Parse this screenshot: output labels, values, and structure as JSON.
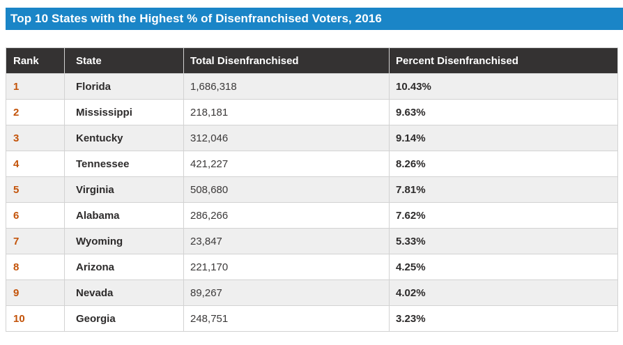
{
  "title": "Top 10 States with the Highest % of Disenfranchised Voters, 2016",
  "colors": {
    "title_bar_bg": "#1a85c7",
    "title_text": "#ffffff",
    "header_bg": "#343232",
    "header_text": "#ffffff",
    "row_alt_bg": "#efefef",
    "rank_text": "#c35309"
  },
  "chart_data": {
    "type": "table",
    "title": "Top 10 States with the Highest % of Disenfranchised Voters, 2016",
    "columns": [
      "Rank",
      "State",
      "Total Disenfranchised",
      "Percent Disenfranchised"
    ],
    "rows": [
      [
        "1",
        "Florida",
        "1,686,318",
        "10.43%"
      ],
      [
        "2",
        "Mississippi",
        "218,181",
        "9.63%"
      ],
      [
        "3",
        "Kentucky",
        "312,046",
        "9.14%"
      ],
      [
        "4",
        "Tennessee",
        "421,227",
        "8.26%"
      ],
      [
        "5",
        "Virginia",
        "508,680",
        "7.81%"
      ],
      [
        "6",
        "Alabama",
        "286,266",
        "7.62%"
      ],
      [
        "7",
        "Wyoming",
        "23,847",
        "5.33%"
      ],
      [
        "8",
        "Arizona",
        "221,170",
        "4.25%"
      ],
      [
        "9",
        "Nevada",
        "89,267",
        "4.02%"
      ],
      [
        "10",
        "Georgia",
        "248,751",
        "3.23%"
      ]
    ],
    "notes": {
      "rank_values_numeric": [
        1,
        2,
        3,
        4,
        5,
        6,
        7,
        8,
        9,
        10
      ],
      "total_values_numeric": [
        1686318,
        218181,
        312046,
        421227,
        508680,
        286266,
        23847,
        221170,
        89267,
        248751
      ],
      "percent_values_numeric": [
        10.43,
        9.63,
        9.14,
        8.26,
        7.81,
        7.62,
        5.33,
        4.25,
        4.02,
        3.23
      ]
    }
  }
}
